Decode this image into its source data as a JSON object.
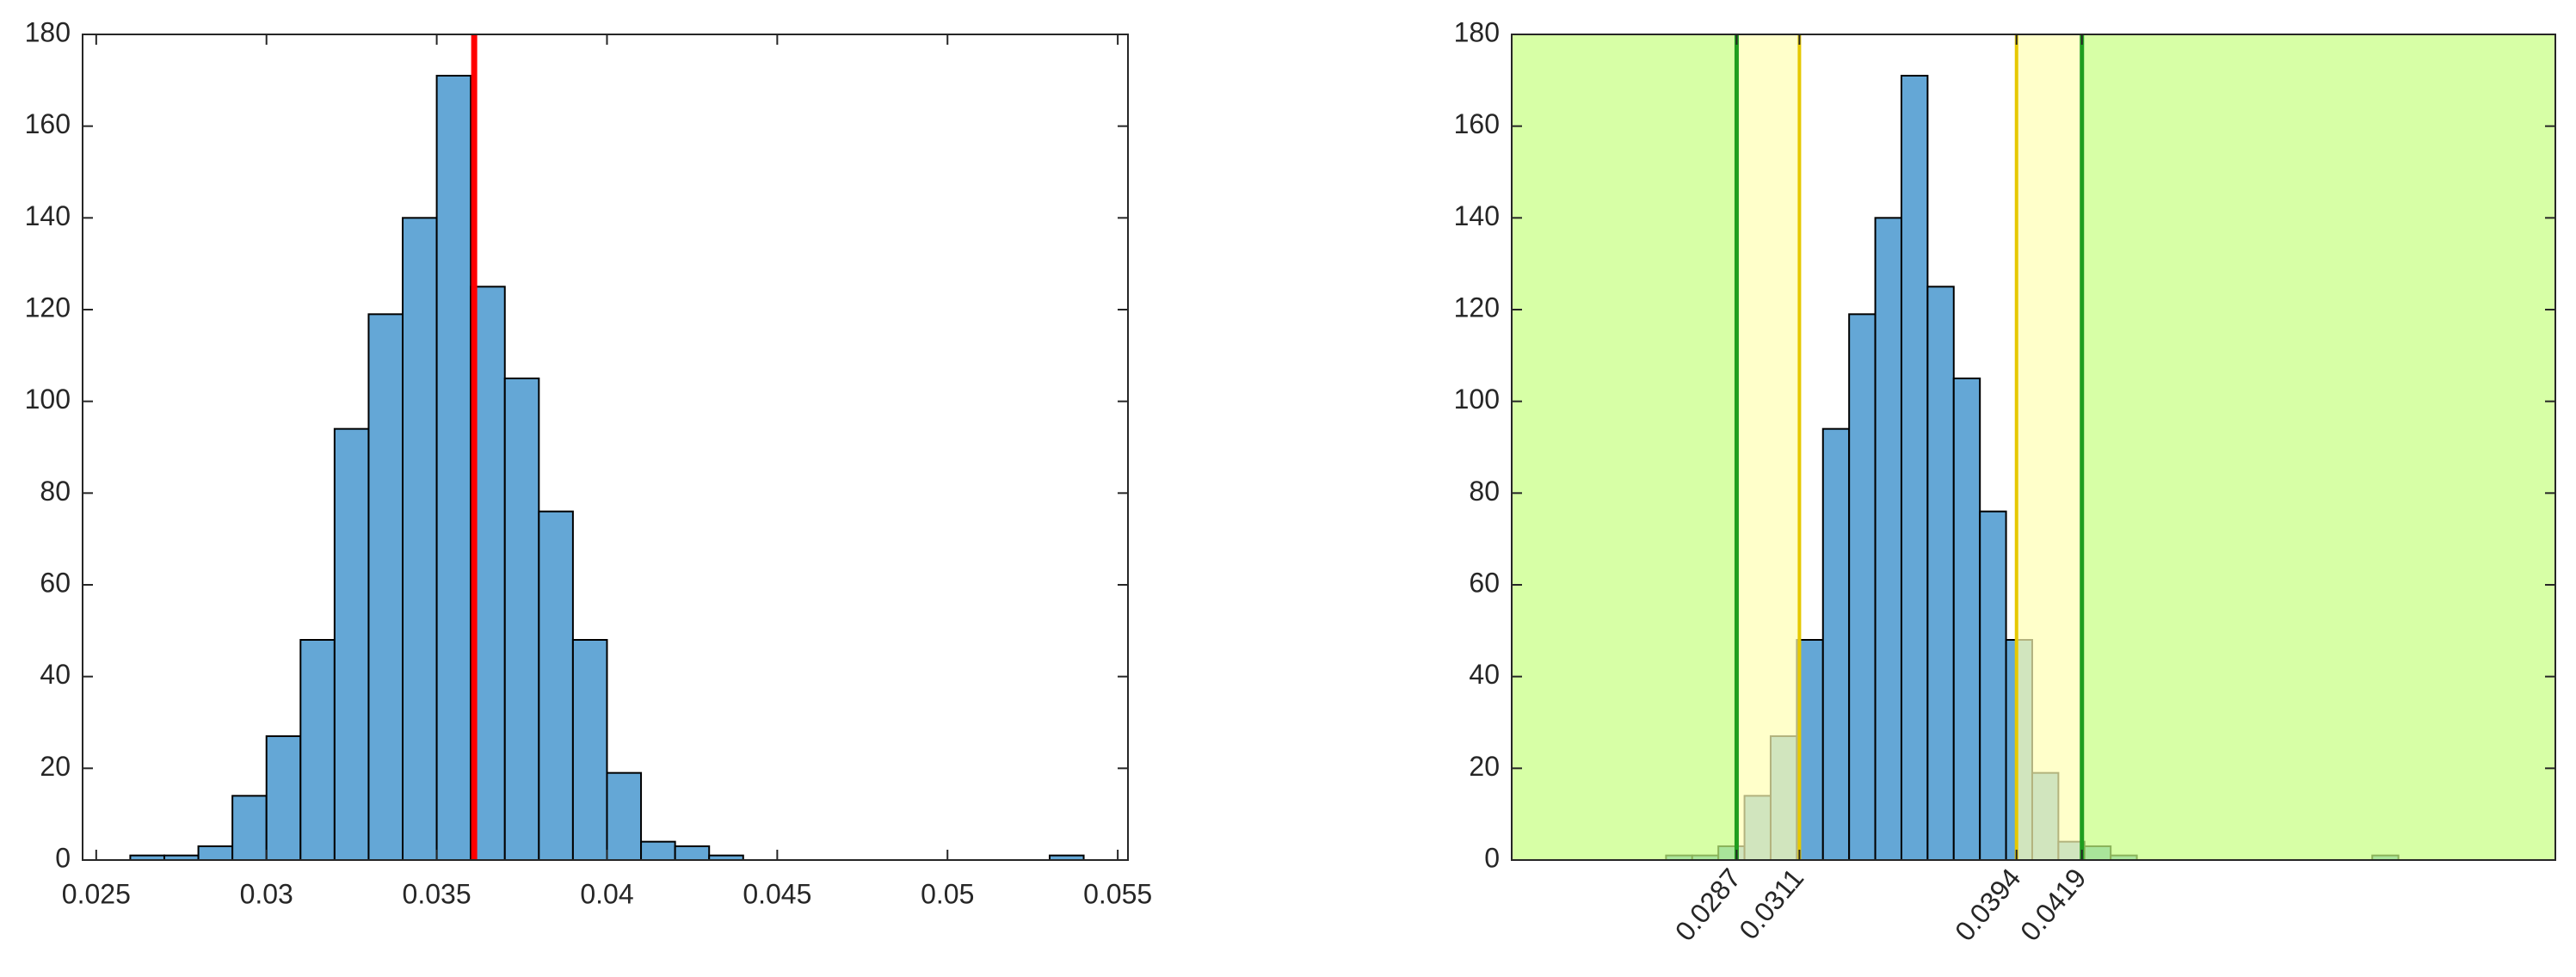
{
  "chart_data": [
    {
      "type": "histogram",
      "bins": [
        0.026,
        0.027,
        0.028,
        0.029,
        0.03,
        0.031,
        0.032,
        0.033,
        0.034,
        0.035,
        0.036,
        0.037,
        0.038,
        0.039,
        0.04,
        0.041,
        0.042,
        0.043,
        0.044,
        0.045,
        0.046,
        0.047,
        0.048,
        0.049,
        0.05,
        0.051,
        0.052,
        0.053,
        0.054
      ],
      "values": [
        1,
        1,
        3,
        14,
        27,
        48,
        94,
        119,
        140,
        171,
        125,
        105,
        76,
        48,
        19,
        4,
        3,
        1,
        0,
        0,
        0,
        0,
        0,
        0,
        0,
        0,
        0,
        1
      ],
      "color": "#64a7d6",
      "xlim": [
        0.0246,
        0.0553
      ],
      "xticks": [
        0.025,
        0.03,
        0.035,
        0.04,
        0.045,
        0.05,
        0.055
      ],
      "ylim": [
        0,
        180
      ],
      "yticks": [
        0,
        20,
        40,
        60,
        80,
        100,
        120,
        140,
        160,
        180
      ],
      "vlines": [
        {
          "value": 0.0361,
          "color": "#ff0000"
        }
      ]
    },
    {
      "type": "histogram",
      "bins": [
        0.026,
        0.027,
        0.028,
        0.029,
        0.03,
        0.031,
        0.032,
        0.033,
        0.034,
        0.035,
        0.036,
        0.037,
        0.038,
        0.039,
        0.04,
        0.041,
        0.042,
        0.043,
        0.044,
        0.045,
        0.046,
        0.047,
        0.048,
        0.049,
        0.05,
        0.051,
        0.052,
        0.053,
        0.054
      ],
      "values": [
        1,
        1,
        3,
        14,
        27,
        48,
        94,
        119,
        140,
        171,
        125,
        105,
        76,
        48,
        19,
        4,
        3,
        1,
        0,
        0,
        0,
        0,
        0,
        0,
        0,
        0,
        0,
        1
      ],
      "color": "#64a7d6",
      "xlim": [
        0.0201,
        0.06
      ],
      "xticks": [
        0.0287,
        0.0311,
        0.0394,
        0.0419
      ],
      "ylim": [
        0,
        180
      ],
      "yticks": [
        0,
        20,
        40,
        60,
        80,
        100,
        120,
        140,
        160,
        180
      ],
      "outer_limits": [
        0.0287,
        0.0419
      ],
      "outer_color": "#c6ff80",
      "outer_line_color": "#1f9e1f",
      "inner_limits": [
        0.0311,
        0.0394
      ],
      "inner_color": "#ffffb3",
      "inner_line_color": "#e6c800"
    }
  ]
}
